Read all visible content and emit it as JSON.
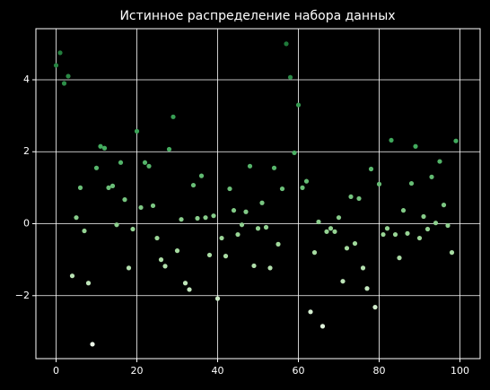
{
  "chart_data": {
    "type": "scatter",
    "title": "Истинное распределение набора данных",
    "x": [
      0,
      1,
      2,
      3,
      4,
      5,
      6,
      7,
      8,
      9,
      10,
      11,
      12,
      13,
      14,
      15,
      16,
      17,
      18,
      19,
      20,
      21,
      22,
      23,
      24,
      25,
      26,
      27,
      28,
      29,
      30,
      31,
      32,
      33,
      34,
      35,
      36,
      37,
      38,
      39,
      40,
      41,
      42,
      43,
      44,
      45,
      46,
      47,
      48,
      49,
      50,
      51,
      52,
      53,
      54,
      55,
      56,
      57,
      58,
      59,
      60,
      61,
      62,
      63,
      64,
      65,
      66,
      67,
      68,
      69,
      70,
      71,
      72,
      73,
      74,
      75,
      76,
      77,
      78,
      79,
      80,
      81,
      82,
      83,
      84,
      85,
      86,
      87,
      88,
      89,
      90,
      91,
      92,
      93,
      94,
      95,
      96,
      97,
      98,
      99
    ],
    "values": [
      4.4,
      4.75,
      3.9,
      4.1,
      -1.45,
      0.17,
      1.0,
      -0.2,
      -1.65,
      -3.35,
      1.55,
      2.15,
      2.1,
      1.0,
      1.05,
      -0.03,
      1.7,
      0.67,
      -1.23,
      -0.15,
      2.57,
      0.45,
      1.7,
      1.6,
      0.5,
      -0.4,
      -1.0,
      -1.18,
      2.07,
      2.97,
      -0.75,
      0.12,
      -1.65,
      -1.83,
      1.07,
      0.15,
      1.33,
      0.17,
      -0.87,
      0.22,
      -2.08,
      -0.4,
      -0.9,
      0.97,
      0.37,
      -0.3,
      -0.03,
      0.33,
      1.6,
      -1.17,
      -0.13,
      0.58,
      -0.1,
      -1.23,
      1.55,
      -0.57,
      0.97,
      5.0,
      4.07,
      1.97,
      3.3,
      1.0,
      1.18,
      -2.45,
      -0.8,
      0.05,
      -2.85,
      -0.22,
      -0.13,
      -0.22,
      0.17,
      -1.6,
      -0.68,
      0.75,
      -0.55,
      0.7,
      -1.23,
      -1.8,
      1.52,
      -2.32,
      1.1,
      -0.3,
      -0.13,
      2.32,
      -0.3,
      -0.95,
      0.37,
      -0.27,
      1.12,
      2.15,
      -0.4,
      0.2,
      -0.15,
      1.3,
      0.02,
      1.73,
      0.52,
      -0.05,
      -0.8,
      2.3
    ],
    "colormap": [
      "#edf8e9",
      "#a1d99b",
      "#41ab5d",
      "#1f7a3a"
    ],
    "xlim": [
      -5,
      105
    ],
    "ylim": [
      -3.75,
      5.42
    ],
    "xticks": [
      0,
      20,
      40,
      60,
      80,
      100
    ],
    "yticks": [
      {
        "value": -2,
        "label": "−2"
      },
      0,
      2,
      4
    ],
    "grid": true
  }
}
